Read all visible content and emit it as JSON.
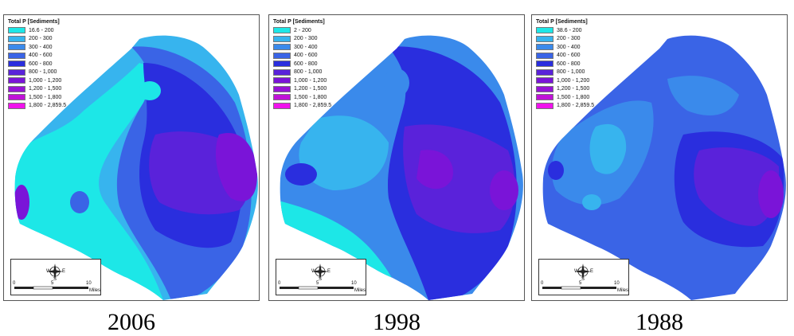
{
  "colors": [
    "#1de7e7",
    "#37b4ee",
    "#3a8aeb",
    "#3a64e6",
    "#2a2ede",
    "#5a22da",
    "#7a14d8",
    "#9613d6",
    "#c012d8",
    "#f012ec"
  ],
  "panels": [
    {
      "id": "2006",
      "year_label": "2006",
      "legend_title": "Total P [Sediments]",
      "legend": [
        "16.6 - 200",
        "200 - 300",
        "300 - 400",
        "400 - 600",
        "600 - 800",
        "800 - 1,000",
        "1,000 - 1,200",
        "1,200 - 1,500",
        "1,500 - 1,800",
        "1,800 - 2,859.5"
      ],
      "scale": {
        "min": "0",
        "mid": "5",
        "max": "10",
        "unit": "Miles"
      },
      "compass": {
        "w": "W",
        "e": "E",
        "s": "S",
        "icon": "compass-rose-icon"
      }
    },
    {
      "id": "1998",
      "year_label": "1998",
      "legend_title": "Total P [Sediments]",
      "legend": [
        "2 - 200",
        "200 - 300",
        "300 - 400",
        "400 - 600",
        "600 - 800",
        "800 - 1,000",
        "1,000 - 1,200",
        "1,200 - 1,500",
        "1,500 - 1,800",
        "1,800 - 2,859.5"
      ],
      "scale": {
        "min": "0",
        "mid": "5",
        "max": "10",
        "unit": "Miles"
      },
      "compass": {
        "w": "W",
        "e": "E",
        "s": "S",
        "icon": "compass-rose-icon"
      }
    },
    {
      "id": "1988",
      "year_label": "1988",
      "legend_title": "Total P [Sediments]",
      "legend": [
        "38.6 - 200",
        "200 - 300",
        "300 - 400",
        "400 - 600",
        "600 - 800",
        "800 - 1,000",
        "1,000 - 1,200",
        "1,200 - 1,500",
        "1,500 - 1,800",
        "1,800 - 2,859.5"
      ],
      "scale": {
        "min": "0",
        "mid": "5",
        "max": "10",
        "unit": "Miles"
      },
      "compass": {
        "w": "W",
        "e": "E",
        "s": "S",
        "icon": "compass-rose-icon"
      }
    }
  ]
}
